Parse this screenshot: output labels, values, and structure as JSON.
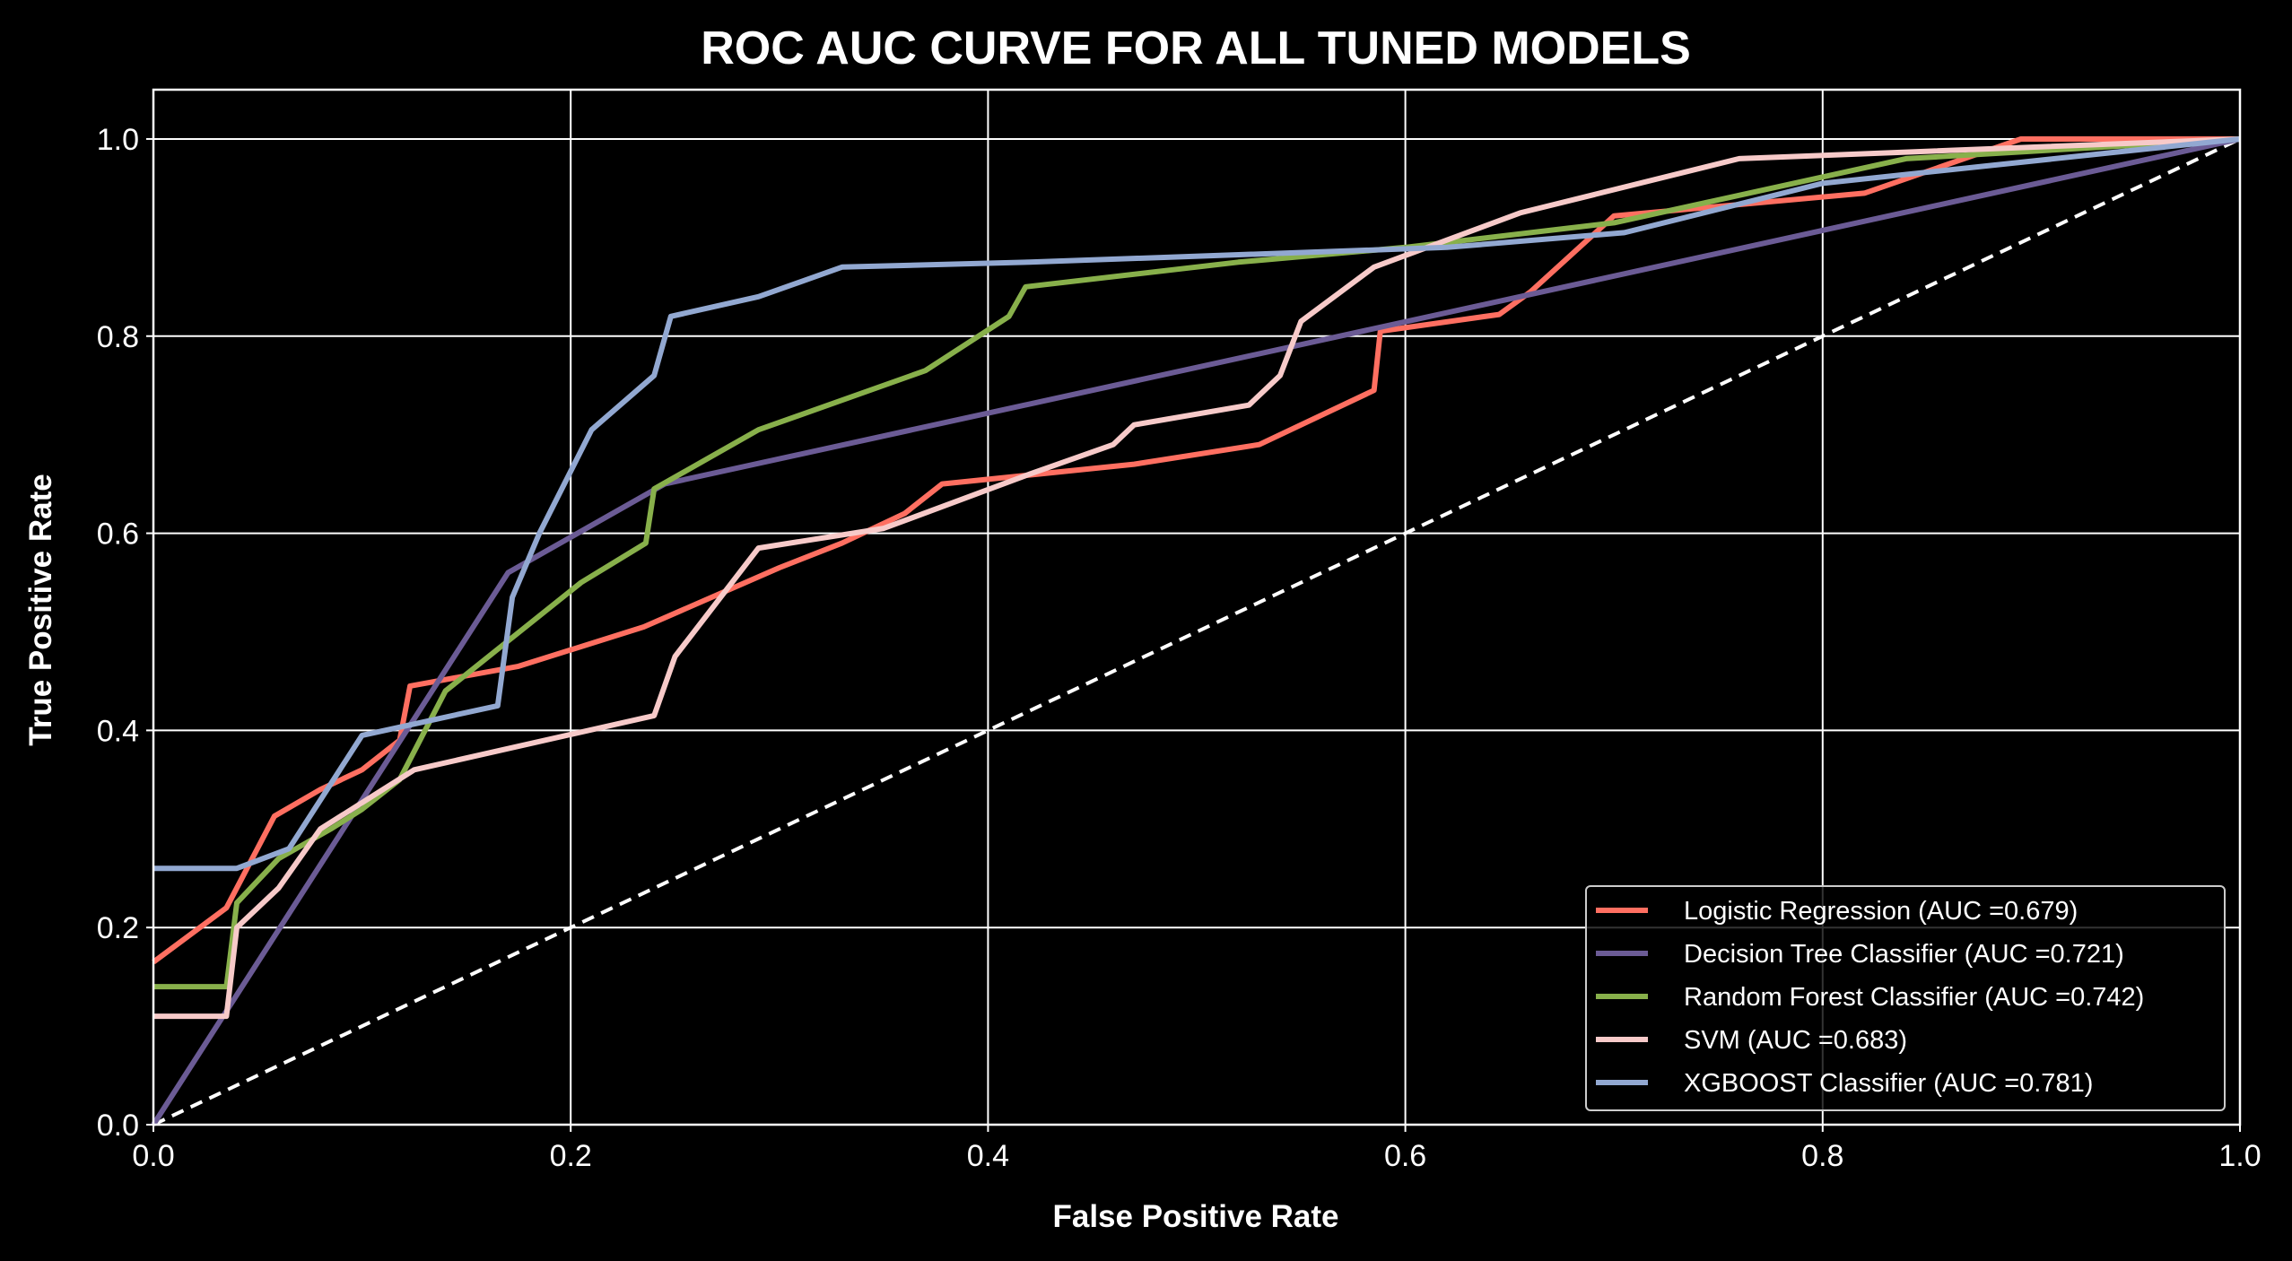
{
  "chart_data": {
    "type": "line",
    "title": "ROC AUC CURVE FOR ALL TUNED MODELS",
    "xlabel": "False Positive Rate",
    "ylabel": "True Positive Rate",
    "xlim": [
      0,
      1
    ],
    "ylim": [
      0,
      1.05
    ],
    "xticks": [
      "0.0",
      "0.2",
      "0.4",
      "0.6",
      "0.8",
      "1.0"
    ],
    "yticks": [
      "0.0",
      "0.2",
      "0.4",
      "0.6",
      "0.8",
      "1.0"
    ],
    "grid": true,
    "legend_position": "lower-right",
    "background_color": "#000000",
    "grid_color": "#ffffff",
    "series": [
      {
        "name": "Logistic Regression (AUC =0.679)",
        "color": "#ff6f61",
        "points": [
          [
            0,
            0.165
          ],
          [
            0.035,
            0.22
          ],
          [
            0.058,
            0.313
          ],
          [
            0.08,
            0.34
          ],
          [
            0.1,
            0.36
          ],
          [
            0.118,
            0.39
          ],
          [
            0.123,
            0.445
          ],
          [
            0.175,
            0.465
          ],
          [
            0.235,
            0.505
          ],
          [
            0.3,
            0.565
          ],
          [
            0.33,
            0.59
          ],
          [
            0.36,
            0.62
          ],
          [
            0.378,
            0.65
          ],
          [
            0.47,
            0.67
          ],
          [
            0.53,
            0.69
          ],
          [
            0.585,
            0.745
          ],
          [
            0.588,
            0.805
          ],
          [
            0.645,
            0.822
          ],
          [
            0.66,
            0.845
          ],
          [
            0.7,
            0.922
          ],
          [
            0.82,
            0.945
          ],
          [
            0.895,
            1.0
          ],
          [
            1.0,
            1.0
          ]
        ]
      },
      {
        "name": "Decision Tree Classifier (AUC =0.721)",
        "color": "#6b5b95",
        "points": [
          [
            0,
            0
          ],
          [
            0.17,
            0.56
          ],
          [
            0.245,
            0.65
          ],
          [
            1.0,
            1.0
          ]
        ]
      },
      {
        "name": "Random Forest Classifier (AUC =0.742)",
        "color": "#88b04b",
        "points": [
          [
            0,
            0.14
          ],
          [
            0.035,
            0.14
          ],
          [
            0.04,
            0.225
          ],
          [
            0.06,
            0.27
          ],
          [
            0.085,
            0.3
          ],
          [
            0.1,
            0.32
          ],
          [
            0.118,
            0.35
          ],
          [
            0.14,
            0.44
          ],
          [
            0.205,
            0.55
          ],
          [
            0.236,
            0.59
          ],
          [
            0.24,
            0.645
          ],
          [
            0.29,
            0.705
          ],
          [
            0.37,
            0.765
          ],
          [
            0.41,
            0.82
          ],
          [
            0.418,
            0.85
          ],
          [
            0.52,
            0.875
          ],
          [
            0.6,
            0.89
          ],
          [
            0.7,
            0.915
          ],
          [
            0.84,
            0.98
          ],
          [
            1.0,
            1.0
          ]
        ]
      },
      {
        "name": "SVM (AUC =0.683)",
        "color": "#f7cac9",
        "points": [
          [
            0,
            0.11
          ],
          [
            0.035,
            0.11
          ],
          [
            0.04,
            0.2
          ],
          [
            0.06,
            0.24
          ],
          [
            0.08,
            0.3
          ],
          [
            0.125,
            0.36
          ],
          [
            0.24,
            0.415
          ],
          [
            0.25,
            0.475
          ],
          [
            0.29,
            0.585
          ],
          [
            0.35,
            0.605
          ],
          [
            0.42,
            0.66
          ],
          [
            0.46,
            0.69
          ],
          [
            0.47,
            0.71
          ],
          [
            0.525,
            0.73
          ],
          [
            0.54,
            0.76
          ],
          [
            0.55,
            0.815
          ],
          [
            0.585,
            0.87
          ],
          [
            0.655,
            0.925
          ],
          [
            0.76,
            0.98
          ],
          [
            1.0,
            1.0
          ]
        ]
      },
      {
        "name": "XGBOOST Classifier (AUC =0.781)",
        "color": "#92a8d1",
        "points": [
          [
            0,
            0.26
          ],
          [
            0.04,
            0.26
          ],
          [
            0.065,
            0.28
          ],
          [
            0.1,
            0.395
          ],
          [
            0.165,
            0.425
          ],
          [
            0.172,
            0.535
          ],
          [
            0.185,
            0.6
          ],
          [
            0.21,
            0.705
          ],
          [
            0.24,
            0.76
          ],
          [
            0.248,
            0.82
          ],
          [
            0.29,
            0.84
          ],
          [
            0.33,
            0.87
          ],
          [
            0.42,
            0.875
          ],
          [
            0.62,
            0.89
          ],
          [
            0.705,
            0.905
          ],
          [
            0.8,
            0.955
          ],
          [
            1.0,
            1.0
          ]
        ]
      }
    ],
    "reference_line": {
      "color": "#ffffff",
      "style": "dashed",
      "points": [
        [
          0,
          0
        ],
        [
          1,
          1
        ]
      ]
    }
  }
}
